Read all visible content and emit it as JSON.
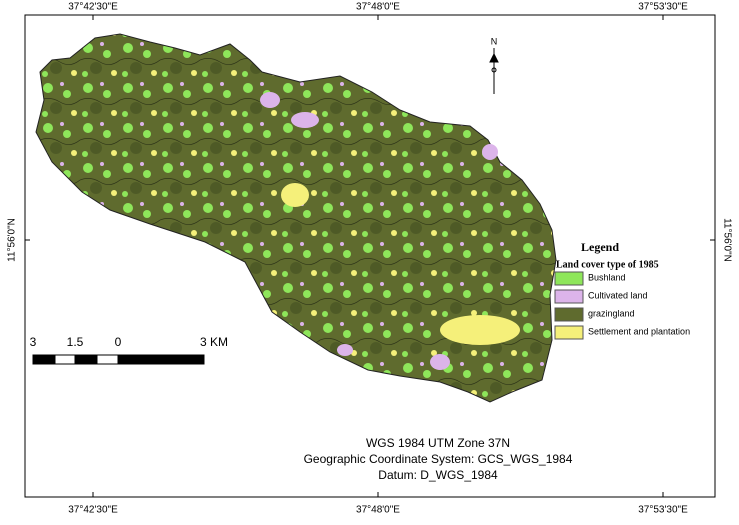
{
  "graticule": {
    "top": [
      "37°42'30\"E",
      "37°48'0\"E",
      "37°53'30\"E"
    ],
    "bottom": [
      "37°42'30\"E",
      "37°48'0\"E",
      "37°53'30\"E"
    ],
    "left": "11°56'0\"N",
    "right": "11°56'0\"N"
  },
  "north_arrow": "N",
  "scale_bar": [
    "3",
    "1.5",
    "0",
    "3 KM"
  ],
  "legend": {
    "title": "Legend",
    "subtitle": "Land cover type of 1985",
    "items": [
      {
        "label": "Bushland",
        "color": "#8ee65a"
      },
      {
        "label": "Cultivated land",
        "color": "#dcb4ea"
      },
      {
        "label": "grazingland",
        "color": "#5f6b2e"
      },
      {
        "label": "Settlement and plantation",
        "color": "#f5f07a"
      }
    ]
  },
  "footer": [
    "WGS 1984 UTM Zone 37N",
    "Geographic Coordinate System:  GCS_WGS_1984",
    "Datum:   D_WGS_1984"
  ]
}
